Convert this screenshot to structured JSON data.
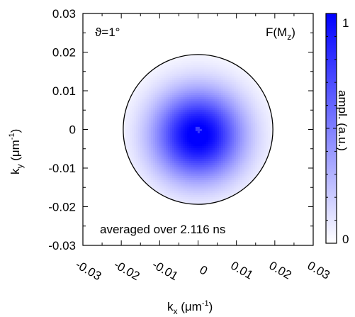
{
  "chart_data": {
    "type": "heatmap",
    "title": "",
    "corner_label_left": "ϑ=1°",
    "corner_label_right_main": "F(M",
    "corner_label_right_sub": "z",
    "corner_label_right_end": ")",
    "annotation": "averaged over 2.116 ns",
    "xlabel_main": "k",
    "xlabel_sub": "x",
    "xlabel_unit_main": " (μm",
    "xlabel_unit_sup": "-1",
    "xlabel_unit_end": ")",
    "ylabel_main": "k",
    "ylabel_sub": "y",
    "ylabel_unit_main": " (μm",
    "ylabel_unit_sup": "-1",
    "ylabel_unit_end": ")",
    "xlim": [
      -0.03,
      0.03
    ],
    "ylim": [
      -0.03,
      0.03
    ],
    "x_ticks": [
      -0.03,
      -0.02,
      -0.01,
      0,
      0.01,
      0.02,
      0.03
    ],
    "x_tick_labels": [
      "-0.03",
      "-0.02",
      "-0.01",
      "0",
      "0.01",
      "0.02",
      "0.03"
    ],
    "y_ticks": [
      0.03,
      0.02,
      0.01,
      0,
      -0.01,
      -0.02,
      -0.03
    ],
    "y_tick_labels": [
      "0.03",
      "0.02",
      "0.01",
      "0",
      "-0.01",
      "-0.02",
      "-0.03"
    ],
    "circle_radius": 0.0195,
    "peak_center": [
      0.0,
      -0.0015
    ],
    "colorbar": {
      "label": "ampl. (a.u.)",
      "min_label": "0",
      "max_label": "1",
      "range": [
        0,
        1
      ],
      "color_low": "#ffffff",
      "color_high": "#0000ff"
    },
    "grid": false
  }
}
